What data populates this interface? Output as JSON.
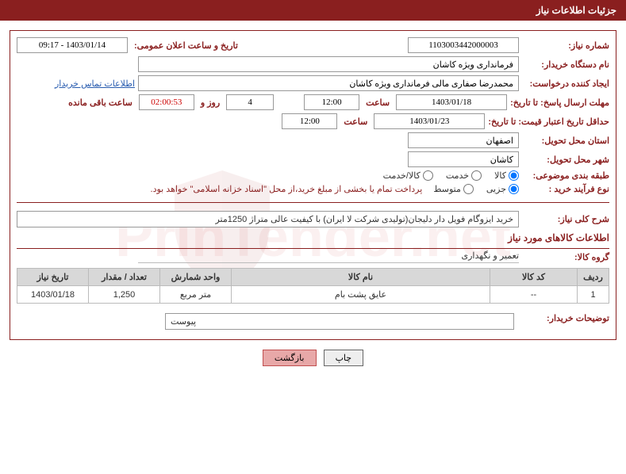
{
  "header": {
    "title": "جزئیات اطلاعات نیاز"
  },
  "form": {
    "need_number_label": "شماره نیاز:",
    "need_number": "1103003442000003",
    "announce_label": "تاریخ و ساعت اعلان عمومی:",
    "announce_value": "1403/01/14 - 09:17",
    "buyer_org_label": "نام دستگاه خریدار:",
    "buyer_org": "فرمانداری ویژه کاشان",
    "requester_label": "ایجاد کننده درخواست:",
    "requester": "محمدرضا صفاری مالی فرمانداری ویژه کاشان",
    "contact_link": "اطلاعات تماس خریدار",
    "deadline_label": "مهلت ارسال پاسخ: تا تاریخ:",
    "deadline_date": "1403/01/18",
    "time_label": "ساعت",
    "deadline_time": "12:00",
    "remaining_days": "4",
    "days_and": "روز و",
    "remaining_time": "02:00:53",
    "remaining_label": "ساعت باقی مانده",
    "validity_label": "حداقل تاریخ اعتبار قیمت: تا تاریخ:",
    "validity_date": "1403/01/23",
    "validity_time": "12:00",
    "province_label": "استان محل تحویل:",
    "province": "اصفهان",
    "city_label": "شهر محل تحویل:",
    "city": "کاشان",
    "category_label": "طبقه بندی موضوعی:",
    "cat_goods": "کالا",
    "cat_service": "خدمت",
    "cat_both": "کالا/خدمت",
    "process_label": "نوع فرآیند خرید :",
    "proc_small": "جزیی",
    "proc_medium": "متوسط",
    "payment_note": "پرداخت تمام یا بخشی از مبلغ خرید،از محل \"اسناد خزانه اسلامی\" خواهد بود."
  },
  "description": {
    "label": "شرح کلی نیاز:",
    "text": "خرید ایزوگام فویل دار دلیجان(تولیدی شرکت لا ایران) با کیفیت عالی متراژ 1250متر"
  },
  "goods": {
    "title": "اطلاعات کالاهای مورد نیاز",
    "group_label": "گروه کالا:",
    "group_value": "تعمیر و نگهداری",
    "columns": {
      "row": "ردیف",
      "code": "کد کالا",
      "name": "نام کالا",
      "unit": "واحد شمارش",
      "qty": "تعداد / مقدار",
      "date": "تاریخ نیاز"
    },
    "rows": [
      {
        "row": "1",
        "code": "--",
        "name": "عایق پشت بام",
        "unit": "متر مربع",
        "qty": "1,250",
        "date": "1403/01/18"
      }
    ]
  },
  "notes": {
    "buyer_notes_label": "توضیحات خریدار:",
    "attachment_label": "پیوست"
  },
  "buttons": {
    "print": "چاپ",
    "back": "بازگشت"
  },
  "watermark": "PrinTender.net"
}
